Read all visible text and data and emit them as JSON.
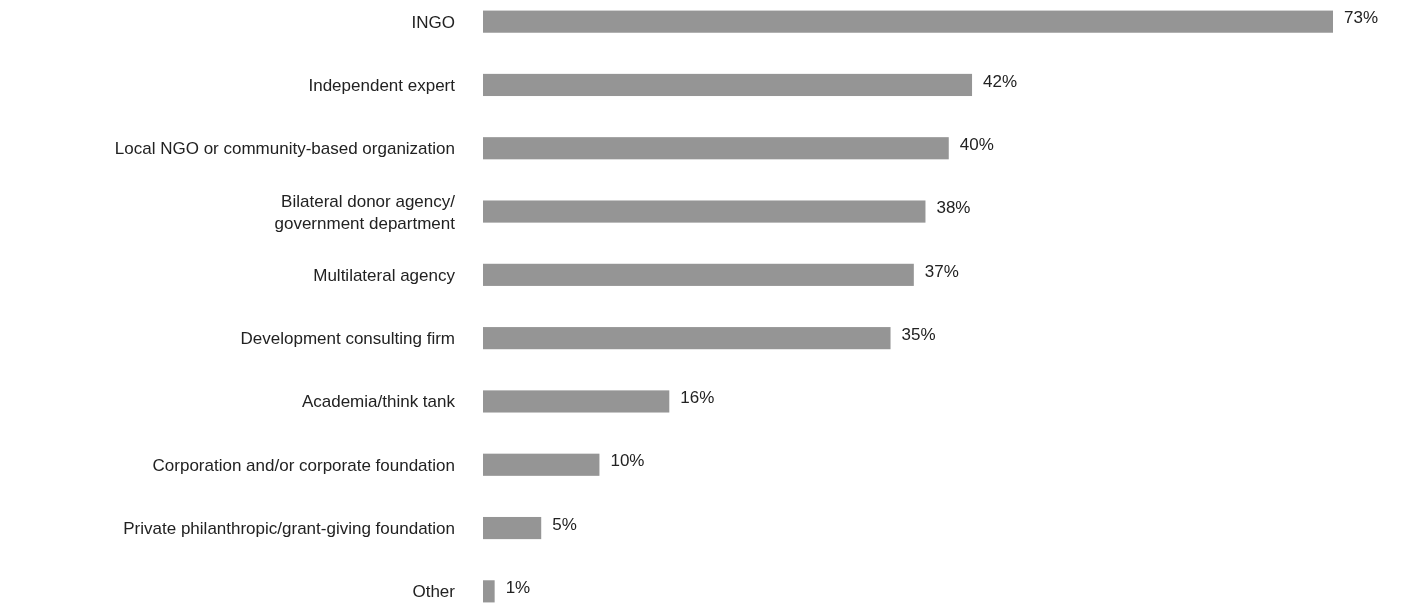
{
  "chart_data": {
    "type": "bar",
    "orientation": "horizontal",
    "categories": [
      "INGO",
      "Independent expert",
      "Local NGO or community-based organization",
      "Bilateral donor agency/\ngovernment department",
      "Multilateral agency",
      "Development consulting firm",
      "Academia/think tank",
      "Corporation and/or corporate foundation",
      "Private philanthropic/grant-giving foundation",
      "Other"
    ],
    "values": [
      73,
      42,
      40,
      38,
      37,
      35,
      16,
      10,
      5,
      1
    ],
    "value_labels": [
      "73%",
      "42%",
      "40%",
      "38%",
      "37%",
      "35%",
      "16%",
      "10%",
      "5%",
      "1%"
    ],
    "color": "#959595"
  }
}
